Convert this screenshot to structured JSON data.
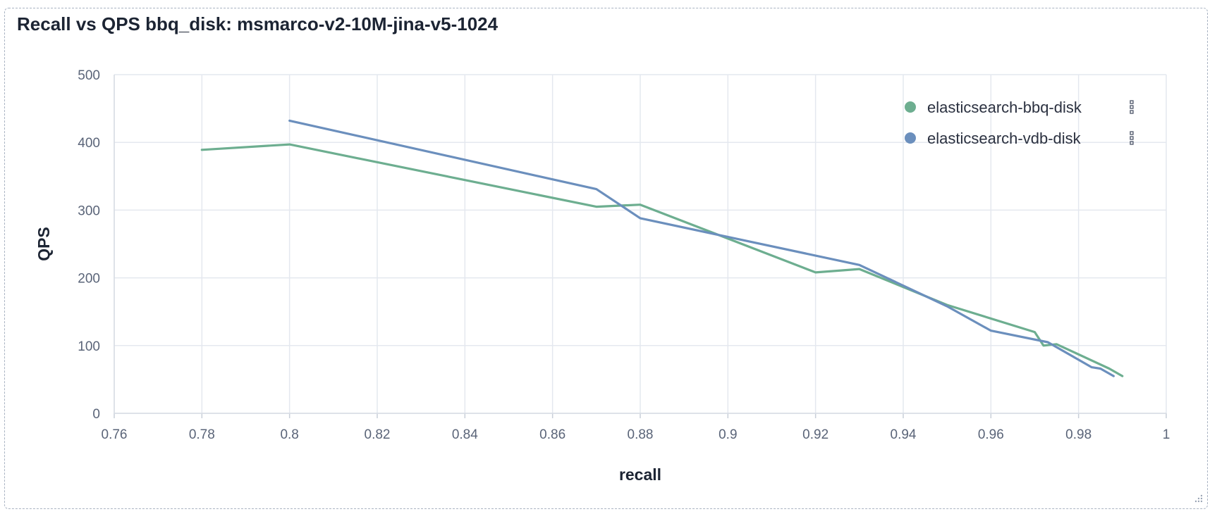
{
  "panel": {
    "title": "Recall vs QPS bbq_disk: msmarco-v2-10M-jina-v5-1024"
  },
  "chart_data": {
    "type": "line",
    "title": "Recall vs QPS bbq_disk: msmarco-v2-10M-jina-v5-1024",
    "xlabel": "recall",
    "ylabel": "QPS",
    "xlim": [
      0.76,
      1
    ],
    "ylim": [
      0,
      500
    ],
    "xticks": [
      "0.76",
      "0.78",
      "0.8",
      "0.82",
      "0.84",
      "0.86",
      "0.88",
      "0.9",
      "0.92",
      "0.94",
      "0.96",
      "0.98",
      "1"
    ],
    "yticks": [
      "0",
      "100",
      "200",
      "300",
      "400",
      "500"
    ],
    "grid": true,
    "legend_position": "top-right",
    "series": [
      {
        "name": "elasticsearch-bbq-disk",
        "color": "#6dae90",
        "points": [
          [
            0.78,
            389
          ],
          [
            0.8,
            397
          ],
          [
            0.87,
            305
          ],
          [
            0.88,
            308
          ],
          [
            0.92,
            208
          ],
          [
            0.93,
            213
          ],
          [
            0.95,
            160
          ],
          [
            0.97,
            120
          ],
          [
            0.972,
            100
          ],
          [
            0.975,
            102
          ],
          [
            0.987,
            66
          ],
          [
            0.99,
            55
          ]
        ]
      },
      {
        "name": "elasticsearch-vdb-disk",
        "color": "#6b8fbd",
        "points": [
          [
            0.8,
            432
          ],
          [
            0.87,
            331
          ],
          [
            0.88,
            288
          ],
          [
            0.93,
            219
          ],
          [
            0.95,
            158
          ],
          [
            0.96,
            122
          ],
          [
            0.973,
            105
          ],
          [
            0.983,
            68
          ],
          [
            0.985,
            66
          ],
          [
            0.988,
            55
          ]
        ]
      }
    ]
  }
}
